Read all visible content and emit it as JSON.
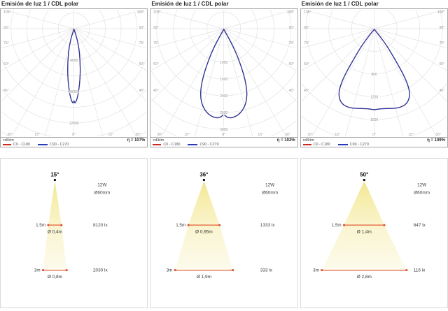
{
  "polar_panels": [
    {
      "title": "Emisión de luz 1 / CDL polar",
      "unit": "cd/klm",
      "eta": "η = 107%",
      "legend": [
        {
          "name": "C0 - C180"
        },
        {
          "name": "C90 - C270"
        }
      ],
      "ring_values": [
        "4000",
        "8000",
        "12000"
      ],
      "side_angle_labels": [
        "105°",
        "90°",
        "75°",
        "60°",
        "45°"
      ],
      "bottom_angle_labels": [
        "30°",
        "15°",
        "0°",
        "15°",
        "30°"
      ]
    },
    {
      "title": "Emisión de luz 1 / CDL polar",
      "unit": "cd/klm",
      "eta": "η = 102%",
      "legend": [
        {
          "name": "C0 - C180"
        },
        {
          "name": "C90 - C270"
        }
      ],
      "ring_values": [
        "1000",
        "1500",
        "2000",
        "2500",
        "3000"
      ],
      "side_angle_labels": [
        "105°",
        "90°",
        "75°",
        "60°",
        "45°"
      ],
      "bottom_angle_labels": [
        "30°",
        "15°",
        "0°",
        "15°",
        "30°"
      ]
    },
    {
      "title": "Emisión de luz 1 / CDL polar",
      "unit": "cd/klm",
      "eta": "η = 109%",
      "legend": [
        {
          "name": "C0 - C180"
        },
        {
          "name": "C90 - C270"
        }
      ],
      "ring_values": [
        "800",
        "1200",
        "1600"
      ],
      "side_angle_labels": [
        "105°",
        "90°",
        "75°",
        "60°",
        "45°"
      ],
      "bottom_angle_labels": [
        "30°",
        "15°",
        "0°",
        "15°",
        "30°"
      ]
    }
  ],
  "beam_panels": [
    {
      "beam_angle": "15°",
      "power": "12W",
      "fixture_diameter": "Ø60mm",
      "rows": [
        {
          "distance": "1,5m",
          "spot_diameter": "Ø 0,4m",
          "illuminance": "8120 lx"
        },
        {
          "distance": "3m",
          "spot_diameter": "Ø 0,8m",
          "illuminance": "2030 lx"
        }
      ]
    },
    {
      "beam_angle": "36°",
      "power": "12W",
      "fixture_diameter": "Ø60mm",
      "rows": [
        {
          "distance": "1,5m",
          "spot_diameter": "Ø 0,95m",
          "illuminance": "1333 lx"
        },
        {
          "distance": "3m",
          "spot_diameter": "Ø 1,9m",
          "illuminance": "333 lx"
        }
      ]
    },
    {
      "beam_angle": "50°",
      "power": "12W",
      "fixture_diameter": "Ø60mm",
      "rows": [
        {
          "distance": "1,5m",
          "spot_diameter": "Ø 1,4m",
          "illuminance": "647 lx"
        },
        {
          "distance": "3m",
          "spot_diameter": "Ø 2,8m",
          "illuminance": "116 lx"
        }
      ]
    }
  ],
  "colors": {
    "curve_blue": "#27349b",
    "legend_red": "#cc2a1e",
    "legend_blue": "#2a3bb8",
    "beam_line_red": "#e0502c",
    "cone_top": "#f1e593",
    "cone_bottom": "#fdfbec",
    "grid": "#e2e2e2"
  },
  "chart_data": [
    {
      "type": "line",
      "subtype": "polar-intensity-distribution",
      "title": "Emisión de luz 1 / CDL polar",
      "units": "cd/klm",
      "eta_percent": 107,
      "beam_angle_deg": 15,
      "ring_ticks": [
        4000,
        8000,
        12000
      ],
      "angle_ticks_deg": [
        0,
        15,
        30,
        45,
        60,
        75,
        90,
        105
      ],
      "legend_position": "bottom",
      "series": [
        {
          "name": "C0 - C180",
          "points_angle_cd_per_klm": [
            [
              0,
              10100
            ],
            [
              5,
              9600
            ],
            [
              7.5,
              5000
            ],
            [
              10,
              1800
            ],
            [
              15,
              500
            ],
            [
              30,
              120
            ],
            [
              60,
              40
            ],
            [
              90,
              0
            ]
          ]
        },
        {
          "name": "C90 - C270",
          "points_angle_cd_per_klm": [
            [
              0,
              10100
            ],
            [
              5,
              9600
            ],
            [
              7.5,
              5000
            ],
            [
              10,
              1800
            ],
            [
              15,
              500
            ],
            [
              30,
              120
            ],
            [
              60,
              40
            ],
            [
              90,
              0
            ]
          ]
        }
      ]
    },
    {
      "type": "line",
      "subtype": "polar-intensity-distribution",
      "title": "Emisión de luz 1 / CDL polar",
      "units": "cd/klm",
      "eta_percent": 102,
      "beam_angle_deg": 36,
      "ring_ticks": [
        1000,
        1500,
        2000,
        2500,
        3000
      ],
      "angle_ticks_deg": [
        0,
        15,
        30,
        45,
        60,
        75,
        90,
        105
      ],
      "legend_position": "bottom",
      "series": [
        {
          "name": "C0 - C180",
          "points_angle_cd_per_klm": [
            [
              0,
              3000
            ],
            [
              10,
              2750
            ],
            [
              18,
              1500
            ],
            [
              25,
              650
            ],
            [
              30,
              260
            ],
            [
              45,
              60
            ],
            [
              90,
              0
            ]
          ]
        },
        {
          "name": "C90 - C270",
          "points_angle_cd_per_klm": [
            [
              0,
              3000
            ],
            [
              10,
              2750
            ],
            [
              18,
              1500
            ],
            [
              25,
              650
            ],
            [
              30,
              260
            ],
            [
              45,
              60
            ],
            [
              90,
              0
            ]
          ]
        }
      ]
    },
    {
      "type": "line",
      "subtype": "polar-intensity-distribution",
      "title": "Emisión de luz 1 / CDL polar",
      "units": "cd/klm",
      "eta_percent": 109,
      "beam_angle_deg": 50,
      "ring_ticks": [
        800,
        1200,
        1600
      ],
      "angle_ticks_deg": [
        0,
        15,
        30,
        45,
        60,
        75,
        90,
        105
      ],
      "legend_position": "bottom",
      "series": [
        {
          "name": "C0 - C180",
          "points_angle_cd_per_klm": [
            [
              0,
              1450
            ],
            [
              10,
              1360
            ],
            [
              20,
              1060
            ],
            [
              25,
              725
            ],
            [
              35,
              260
            ],
            [
              50,
              60
            ],
            [
              90,
              0
            ]
          ]
        },
        {
          "name": "C90 - C270",
          "points_angle_cd_per_klm": [
            [
              0,
              1450
            ],
            [
              10,
              1360
            ],
            [
              20,
              1060
            ],
            [
              25,
              725
            ],
            [
              35,
              260
            ],
            [
              50,
              60
            ],
            [
              90,
              0
            ]
          ]
        }
      ]
    },
    {
      "type": "table",
      "title": "Beam cone data",
      "columns": [
        "beam_angle_deg",
        "power_w",
        "fixture_diameter_mm",
        "distance_m",
        "spot_diameter_m",
        "illuminance_lx"
      ],
      "rows": [
        [
          15,
          12,
          60,
          1.5,
          0.4,
          8120
        ],
        [
          15,
          12,
          60,
          3,
          0.8,
          2030
        ],
        [
          36,
          12,
          60,
          1.5,
          0.95,
          1333
        ],
        [
          36,
          12,
          60,
          3,
          1.9,
          333
        ],
        [
          50,
          12,
          60,
          1.5,
          1.4,
          647
        ],
        [
          50,
          12,
          60,
          3,
          2.8,
          116
        ]
      ]
    }
  ]
}
